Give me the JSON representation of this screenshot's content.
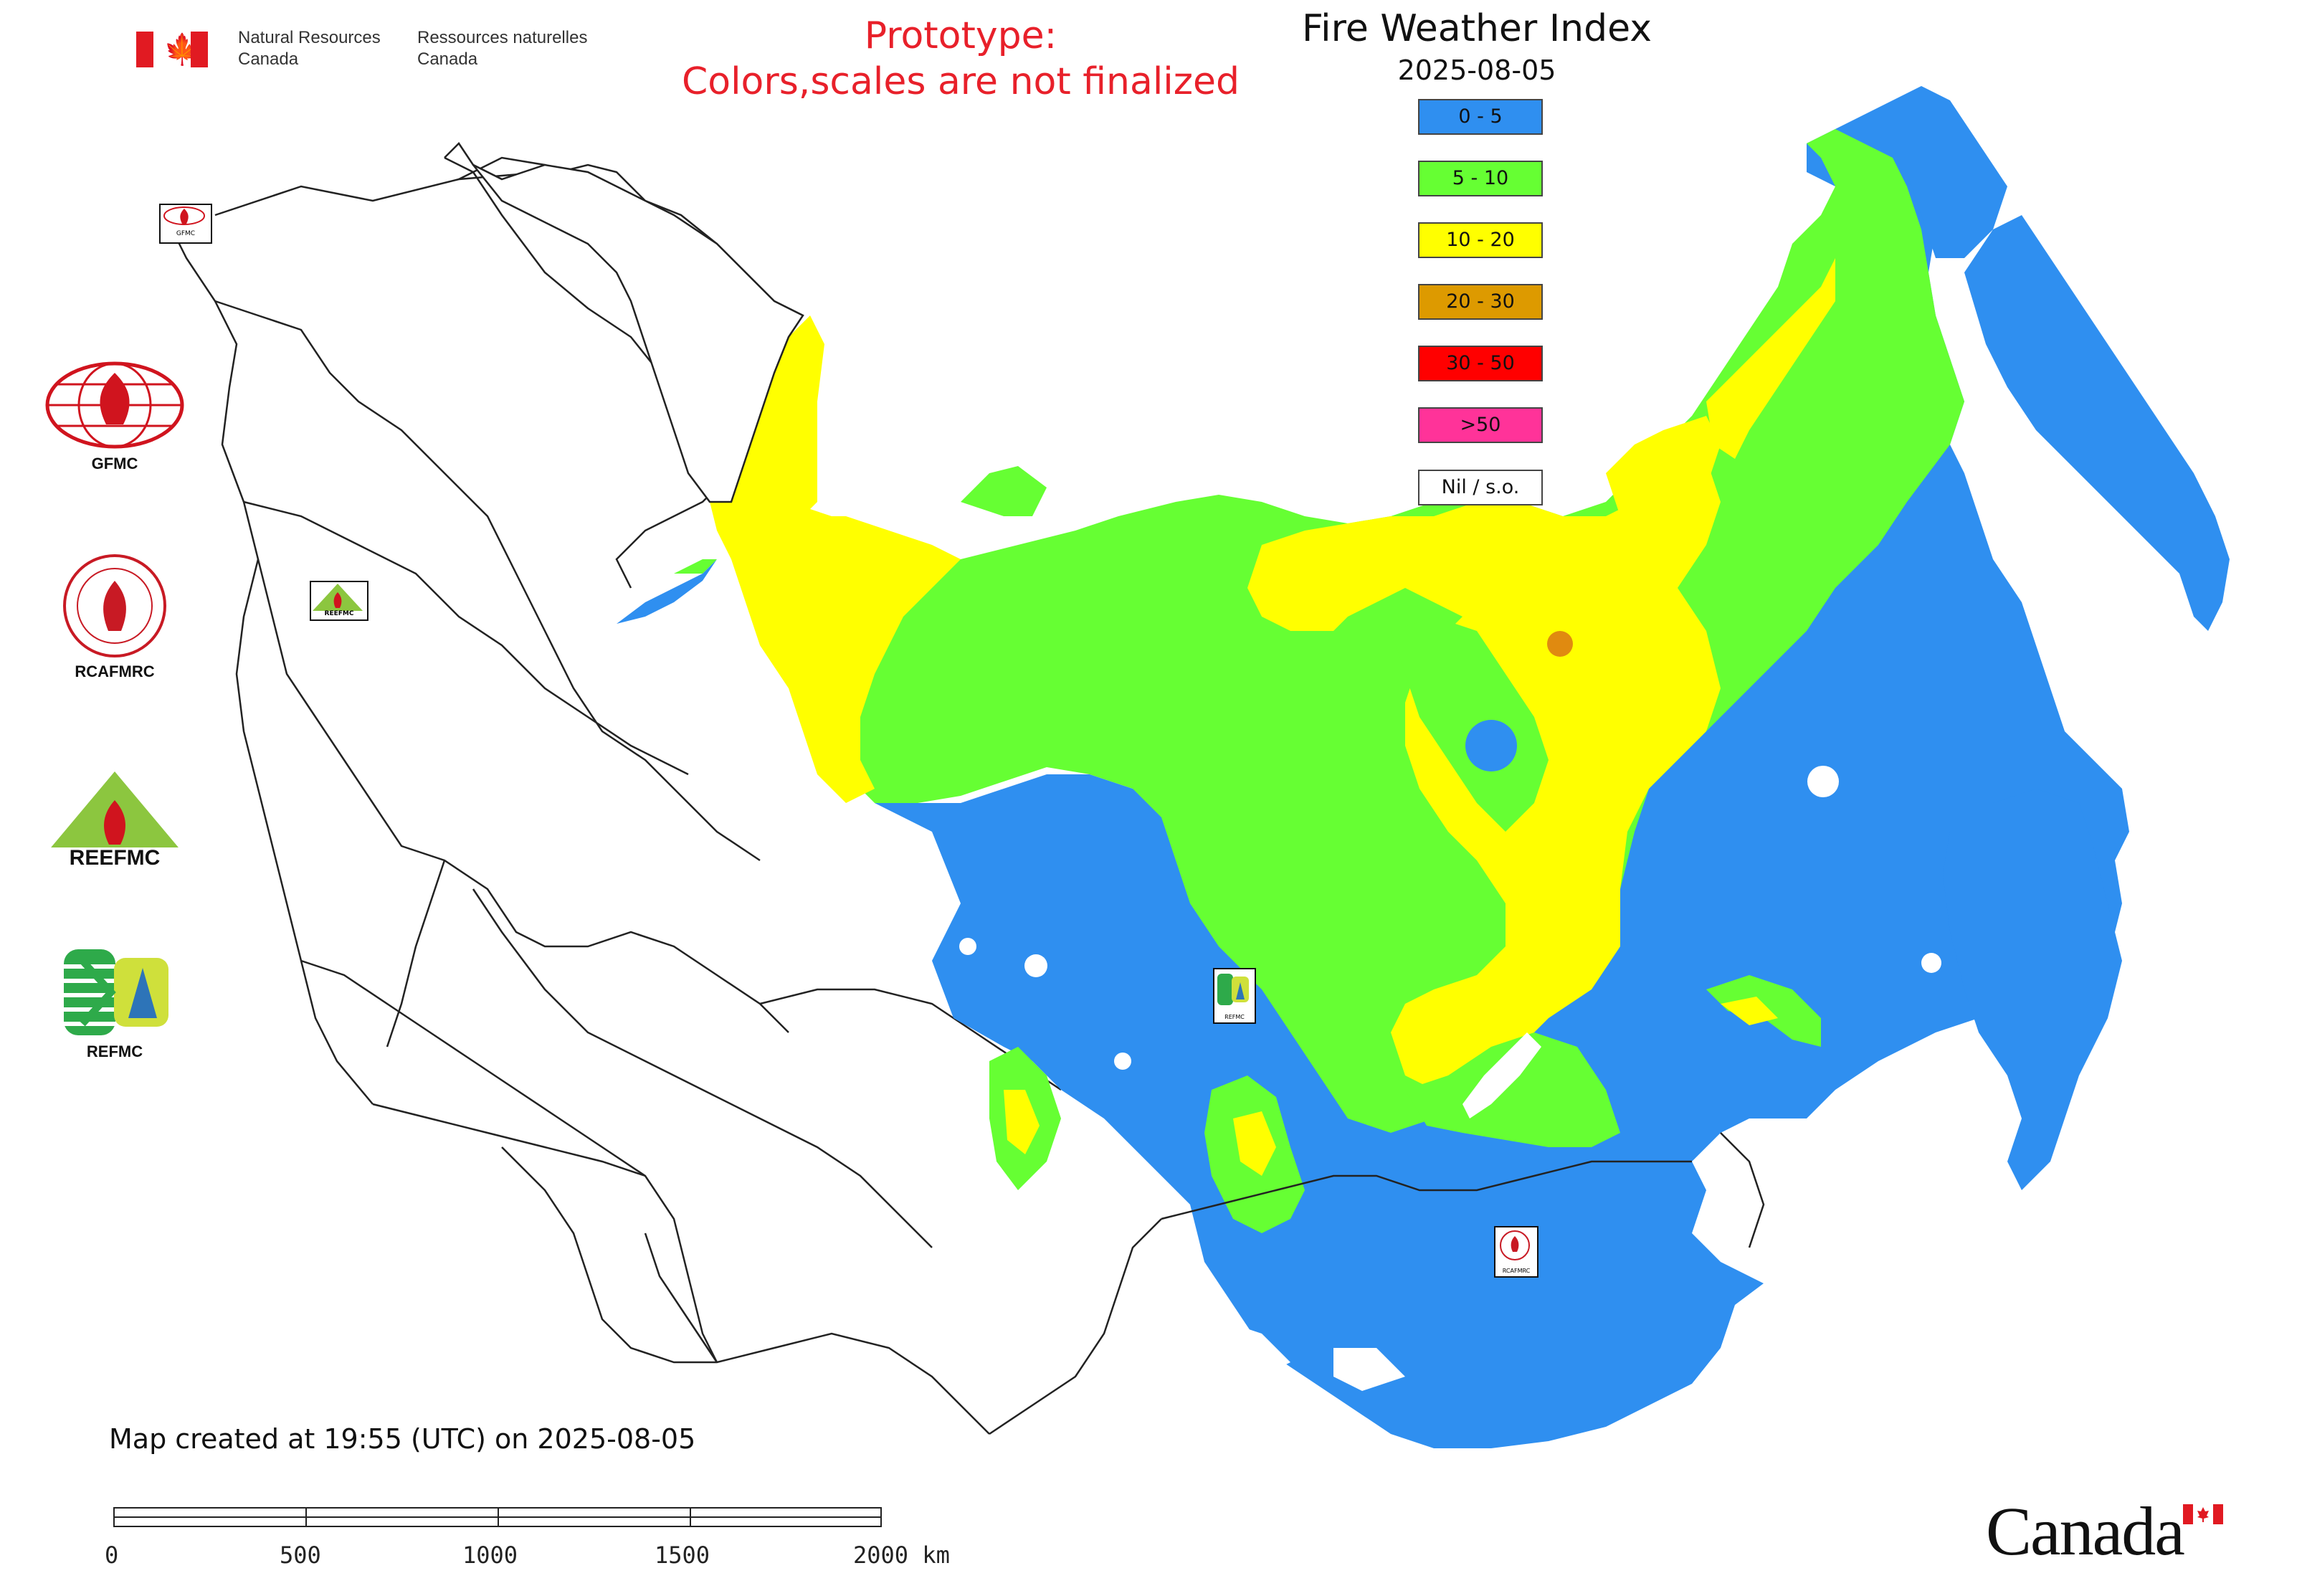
{
  "header": {
    "department_en_line1": "Natural Resources",
    "department_en_line2": "Canada",
    "department_fr_line1": "Ressources naturelles",
    "department_fr_line2": "Canada",
    "prototype_line1": "Prototype:",
    "prototype_line2": "Colors,scales are not finalized"
  },
  "legend": {
    "title": "Fire Weather Index",
    "date": "2025-08-05",
    "items": [
      {
        "label": "0 - 5",
        "color": "#2f8ff0"
      },
      {
        "label": "5 - 10",
        "color": "#66ff33"
      },
      {
        "label": "10 - 20",
        "color": "#ffff00"
      },
      {
        "label": "20 - 30",
        "color": "#dd9a00"
      },
      {
        "label": "30 - 50",
        "color": "#ff0000"
      },
      {
        "label": ">50",
        "color": "#ff3399"
      },
      {
        "label": "Nil / s.o.",
        "color": "#ffffff"
      }
    ]
  },
  "side_logos": [
    {
      "caption": "GFMC"
    },
    {
      "caption": "RCAFMRC"
    },
    {
      "caption": "REEFMC",
      "logo_text": "REEFMC"
    },
    {
      "caption": "REFMC"
    }
  ],
  "map_markers": [
    {
      "label": "GFMC"
    },
    {
      "label": "REEFMC"
    },
    {
      "label": "REFMC"
    },
    {
      "label": "RCAFMRC"
    }
  ],
  "footer": {
    "created": "Map created at 19:55 (UTC) on 2025-08-05",
    "scale_labels": [
      "0",
      "500",
      "1000",
      "1500",
      "2000 km"
    ],
    "wordmark": "Canada"
  }
}
